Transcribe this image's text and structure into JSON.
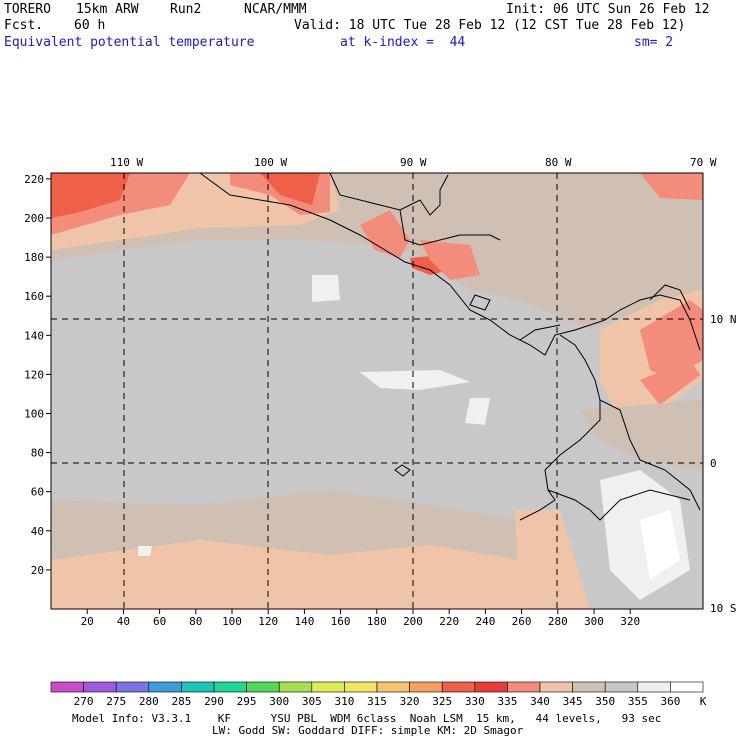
{
  "header": {
    "model": "TORERO",
    "resolution": "15km ARW",
    "run": "Run2",
    "org": "NCAR/MMM",
    "init": "Init: 06 UTC Sun 26 Feb 12",
    "fcst_label": "Fcst.",
    "fcst_hours": "60 h",
    "valid": "Valid: 18 UTC Tue 28 Feb 12 (12 CST Tue 28 Feb 12)",
    "field": "Equivalent potential temperature",
    "level": "at k-index =  44",
    "smoothing": "sm= 2"
  },
  "map": {
    "lon_labels": [
      "110 W",
      "100 W",
      "90 W",
      "80 W",
      "70 W"
    ],
    "lat_labels": [
      "10 N",
      "0",
      "10 S"
    ],
    "y_ticks": [
      20,
      40,
      60,
      80,
      100,
      120,
      140,
      160,
      180,
      200,
      220
    ],
    "x_ticks": [
      20,
      40,
      60,
      80,
      100,
      120,
      140,
      160,
      180,
      200,
      220,
      240,
      260,
      280,
      300,
      320
    ]
  },
  "colorbar": {
    "labels": [
      "270",
      "275",
      "280",
      "285",
      "290",
      "295",
      "300",
      "305",
      "310",
      "315",
      "320",
      "325",
      "330",
      "335",
      "340",
      "345",
      "350",
      "355",
      "360"
    ],
    "unit": "K",
    "colors": [
      "#c84ccc",
      "#a05cd8",
      "#7c74e4",
      "#3c9cd8",
      "#1cc4b8",
      "#20d894",
      "#54d85c",
      "#a4e050",
      "#dcec54",
      "#f4e464",
      "#f4c470",
      "#f4a060",
      "#f06048",
      "#e83c3c",
      "#f48c7c",
      "#f0c4a8",
      "#d0c0b4",
      "#c8c8c8",
      "#f0f0f0",
      "#ffffff"
    ]
  },
  "footer": {
    "line1": "Model Info: V3.3.1    KF      YSU PBL  WDM 6class  Noah LSM  15 km,   44 levels,   93 sec",
    "line2": "LW: Godd SW: Goddard DIFF: simple KM: 2D Smagor"
  }
}
